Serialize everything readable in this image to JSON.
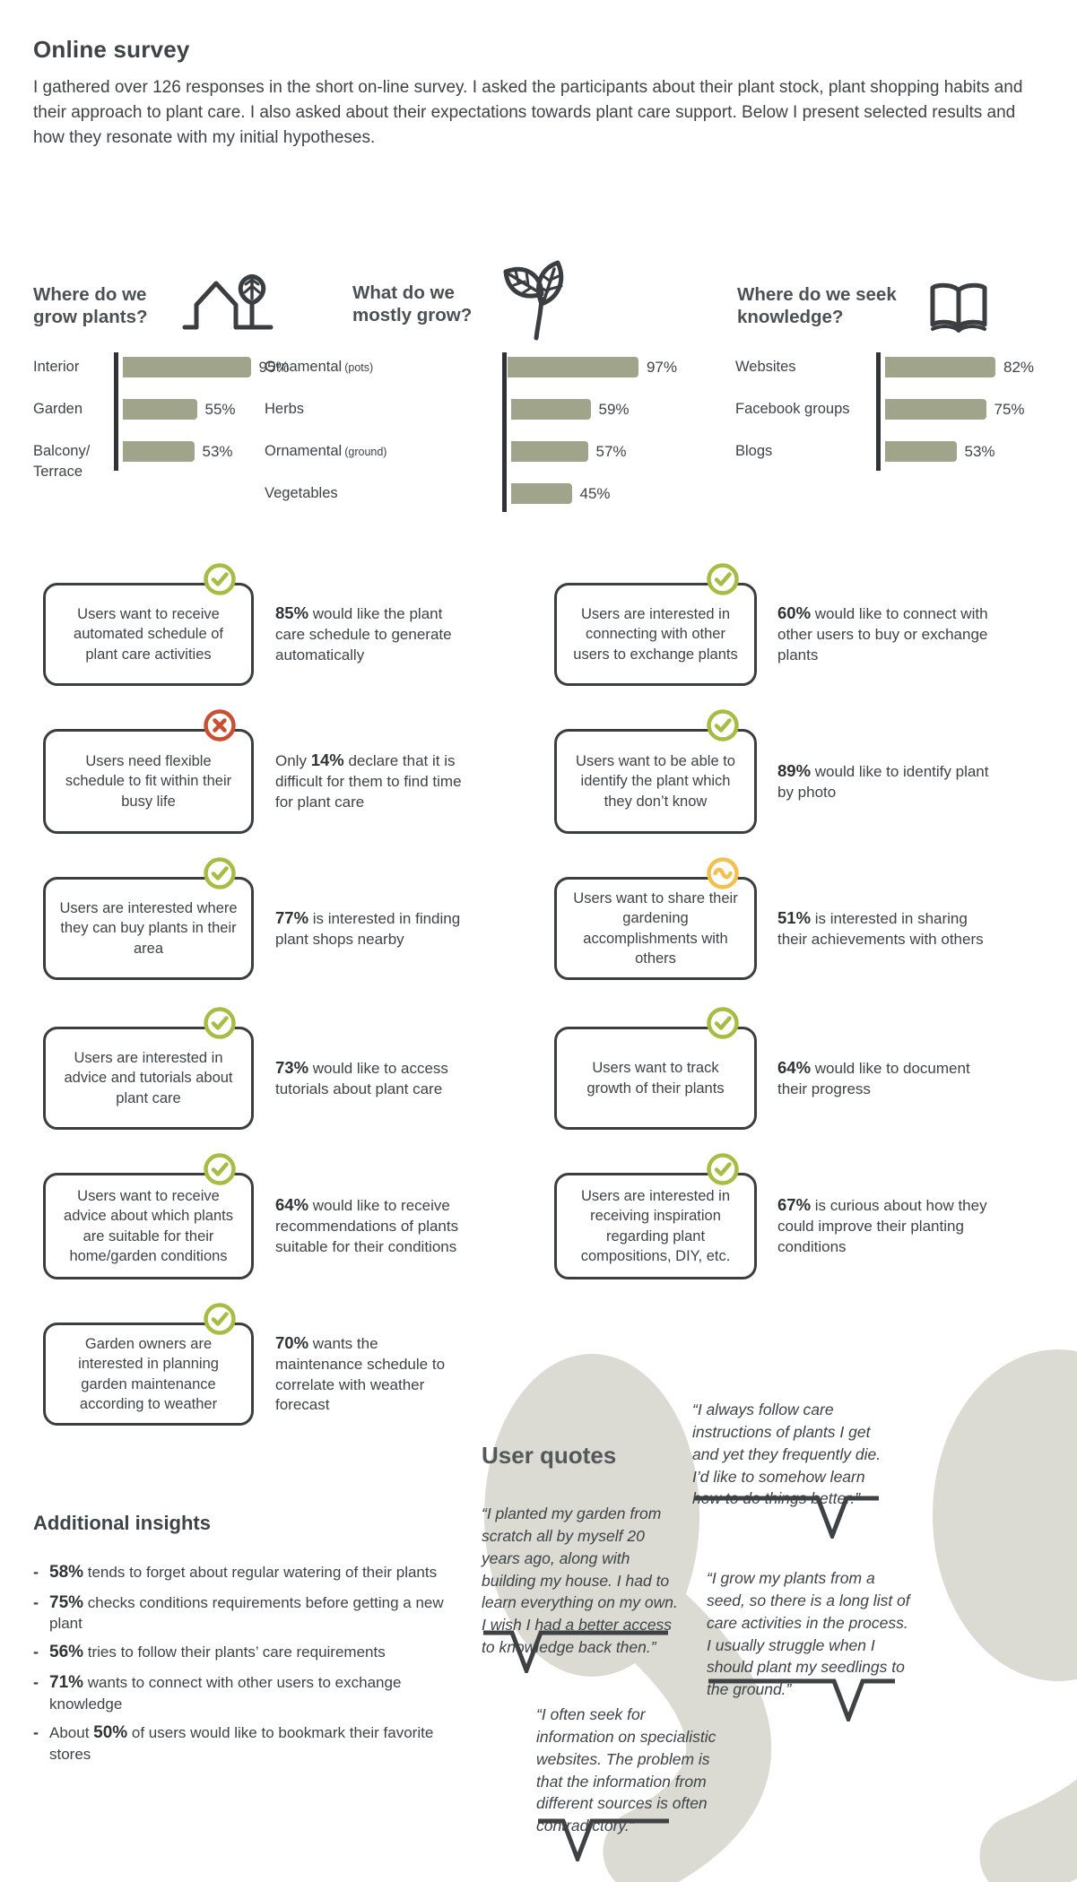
{
  "page": {
    "title": "Online survey",
    "intro": "I gathered over 126 responses in the short on-line survey. I asked the participants about their plant stock, plant shopping habits and their approach to plant care. I also asked about their expectations towards plant care support. Below I present selected results and how they resonate with my initial hypotheses."
  },
  "colors": {
    "accent_green": "#a8bc45",
    "accent_red": "#c94f33",
    "accent_amber": "#f2c050",
    "bar": "#9fa48b",
    "blob": "#dbdbd3",
    "ink": "#3e4347"
  },
  "chart_data": [
    {
      "type": "bar",
      "orientation": "horizontal",
      "title": "Where do we\ngrow plants?",
      "icon": "house-tree-icon",
      "categories": [
        "Interior",
        "Garden",
        "Balcony/\nTerrace"
      ],
      "category_suffixes": [
        "",
        "",
        ""
      ],
      "values": [
        95,
        55,
        53
      ],
      "unit": "%",
      "xlim": [
        0,
        100
      ],
      "bar_color": "#9fa48b"
    },
    {
      "type": "bar",
      "orientation": "horizontal",
      "title": "What do we\nmostly grow?",
      "icon": "leaves-icon",
      "categories": [
        "Ornamental",
        "Herbs",
        "Ornamental",
        "Vegetables"
      ],
      "category_suffixes": [
        "(pots)",
        "",
        "(ground)",
        ""
      ],
      "values": [
        97,
        59,
        57,
        45
      ],
      "unit": "%",
      "xlim": [
        0,
        100
      ],
      "bar_color": "#9fa48b"
    },
    {
      "type": "bar",
      "orientation": "horizontal",
      "title": "Where do we seek\nknowledge?",
      "icon": "open-book-icon",
      "categories": [
        "Websites",
        "Facebook groups",
        "Blogs"
      ],
      "category_suffixes": [
        "",
        "",
        ""
      ],
      "values": [
        82,
        75,
        53
      ],
      "unit": "%",
      "xlim": [
        0,
        100
      ],
      "bar_color": "#9fa48b"
    }
  ],
  "hypotheses": [
    {
      "status": "confirmed",
      "icon": "check-icon",
      "card": "Users want to receive automated schedule of plant care activities",
      "pre": "",
      "bold": "85%",
      "post": " would like the plant care schedule to generate automatically"
    },
    {
      "status": "confirmed",
      "icon": "check-icon",
      "card": "Users are interested in connecting with other users to exchange plants",
      "pre": "",
      "bold": "60%",
      "post": " would like to connect with other users to buy or exchange plants"
    },
    {
      "status": "rejected",
      "icon": "cross-icon",
      "card": "Users need flexible schedule to fit within their busy life",
      "pre": "Only ",
      "bold": "14%",
      "post": " declare that it is difficult for them to find time for plant care"
    },
    {
      "status": "confirmed",
      "icon": "check-icon",
      "card": "Users want to be able to identify the plant which they don’t know",
      "pre": "",
      "bold": "89%",
      "post": " would like to identify plant by photo"
    },
    {
      "status": "confirmed",
      "icon": "check-icon",
      "card": "Users are interested where they can buy plants in their area",
      "pre": "",
      "bold": "77%",
      "post": " is interested in finding plant shops nearby"
    },
    {
      "status": "partial",
      "icon": "tilde-icon",
      "card": "Users want to share their gardening accomplishments with others",
      "pre": "",
      "bold": "51%",
      "post": " is interested in sharing their achievements with others"
    },
    {
      "status": "confirmed",
      "icon": "check-icon",
      "card": "Users are interested in advice and tutorials about plant care",
      "pre": "",
      "bold": "73%",
      "post": " would like to access tutorials about plant care"
    },
    {
      "status": "confirmed",
      "icon": "check-icon",
      "card": "Users want to track growth of their plants",
      "pre": "",
      "bold": "64%",
      "post": " would like to document their progress"
    },
    {
      "status": "confirmed",
      "icon": "check-icon",
      "card": "Users want to receive advice about which plants are suitable for their home/garden conditions",
      "pre": "",
      "bold": "64%",
      "post": " would like to receive recommendations of plants suitable for their conditions"
    },
    {
      "status": "confirmed",
      "icon": "check-icon",
      "card": "Users are interested in receiving inspiration regarding plant compositions, DIY, etc.",
      "pre": "",
      "bold": "67%",
      "post": " is curious about how they could improve their planting conditions"
    },
    {
      "status": "confirmed",
      "icon": "check-icon",
      "card": "Garden owners are interested in planning garden maintenance according to weather",
      "pre": "",
      "bold": "70%",
      "post": " wants the maintenance schedule to correlate with weather forecast"
    }
  ],
  "insights": {
    "heading": "Additional insights",
    "items": [
      {
        "pre": "",
        "bold": "58%",
        "post": " tends to forget about regular watering of their plants"
      },
      {
        "pre": "",
        "bold": "75%",
        "post": " checks conditions requirements before getting a new plant"
      },
      {
        "pre": "",
        "bold": "56%",
        "post": " tries to follow their plants’ care requirements"
      },
      {
        "pre": "",
        "bold": "71%",
        "post": " wants to connect with other users to exchange knowledge"
      },
      {
        "pre": "About ",
        "bold": "50%",
        "post": " of users would like to bookmark their favorite stores"
      }
    ]
  },
  "quotes": {
    "heading": "User quotes",
    "items": [
      "“I planted my garden from scratch all by myself 20 years ago, along with building my house. I had to learn everything on my own. I wish I had a better access to knowledge back then.”",
      "“I always follow care instructions of plants I get and yet they frequently die. I’d like to somehow learn how to do things better.”",
      "“I grow my plants from a seed, so there is a long list of care activities in the process. I usually struggle when I should plant my seedlings to the ground.”",
      "“I often seek for information on specialistic websites. The problem is that the information from different sources is often contradictory.”"
    ]
  }
}
